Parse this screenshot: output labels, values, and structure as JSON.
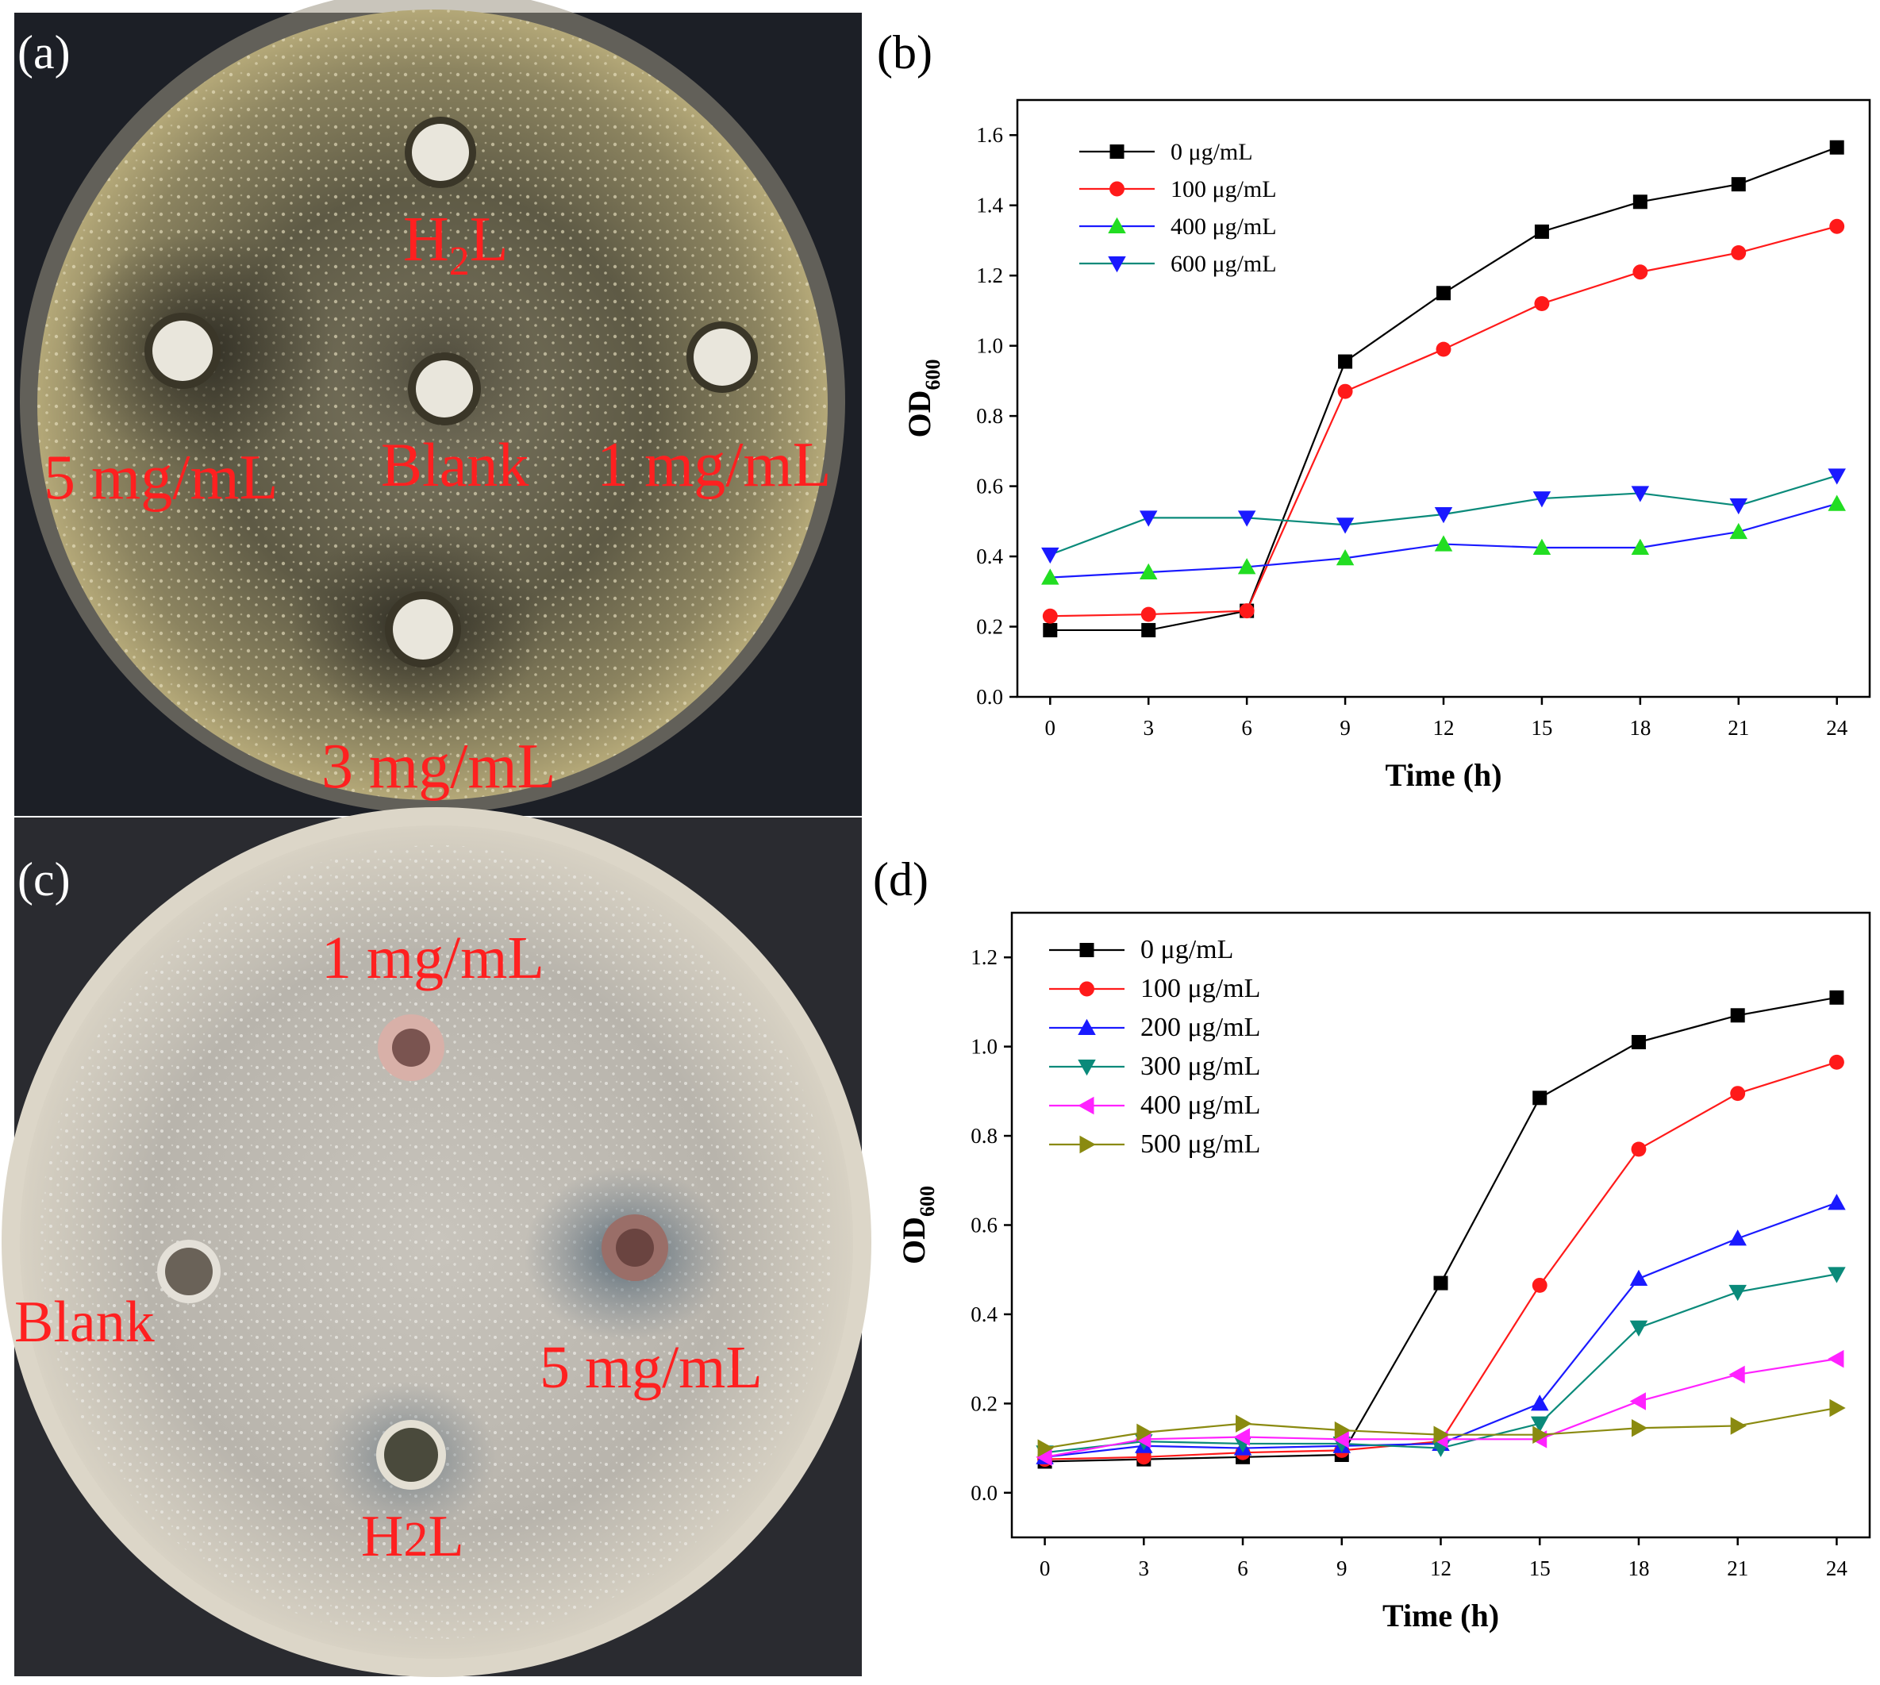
{
  "panels": {
    "a": {
      "letter": "(a)",
      "labels": {
        "top": "H",
        "top_sub": "2",
        "top_tail": "L",
        "left": "5 mg/mL",
        "center": "Blank",
        "right": "1 mg/mL",
        "bottom": "3 mg/mL"
      }
    },
    "c": {
      "letter": "(c)",
      "labels": {
        "top": "1 mg/mL",
        "left": "Blank",
        "right": "5 mg/mL",
        "bottom": "H",
        "bottom_sub": "2",
        "bottom_tail": "L"
      }
    }
  },
  "colors": {
    "black": "#000000",
    "red": "#ff1a1a",
    "blue": "#1a1aff",
    "green": "#22dd22",
    "teal": "#0a8a7a",
    "magenta": "#ff22ff",
    "olive": "#8a8a10",
    "label_red": "#ff2020"
  },
  "chart_data": [
    {
      "panel": "(b)",
      "type": "line",
      "xlabel": "Time (h)",
      "ylabel": "OD",
      "ylabel_sub": "600",
      "x": [
        0,
        3,
        6,
        9,
        12,
        15,
        18,
        21,
        24
      ],
      "xlim": [
        -1,
        25
      ],
      "ylim": [
        0,
        1.7
      ],
      "xticks": [
        0,
        3,
        6,
        9,
        12,
        15,
        18,
        21,
        24
      ],
      "yticks": [
        "0.0",
        "0.2",
        "0.4",
        "0.6",
        "0.8",
        "1.0",
        "1.2",
        "1.4",
        "1.6"
      ],
      "legend_position": "top-left",
      "series": [
        {
          "name": "0 μg/mL",
          "marker": "square",
          "color": "#000000",
          "values": [
            0.19,
            0.19,
            0.245,
            0.955,
            1.15,
            1.325,
            1.41,
            1.46,
            1.565
          ]
        },
        {
          "name": "100 μg/mL",
          "marker": "circle",
          "color": "#ff1a1a",
          "values": [
            0.23,
            0.235,
            0.245,
            0.87,
            0.99,
            1.12,
            1.21,
            1.265,
            1.34
          ]
        },
        {
          "name": "400 μg/mL",
          "marker": "triangle-up",
          "color": "#1a1aff",
          "marker_color": "#22dd22",
          "values": [
            0.34,
            0.355,
            0.37,
            0.395,
            0.435,
            0.425,
            0.425,
            0.47,
            0.55
          ]
        },
        {
          "name": "600 μg/mL",
          "marker": "triangle-down",
          "color": "#0a8a7a",
          "marker_color": "#1a1aff",
          "values": [
            0.405,
            0.51,
            0.51,
            0.49,
            0.52,
            0.565,
            0.58,
            0.545,
            0.63
          ]
        }
      ]
    },
    {
      "panel": "(d)",
      "type": "line",
      "xlabel": "Time (h)",
      "ylabel": "OD",
      "ylabel_sub": "600",
      "x": [
        0,
        3,
        6,
        9,
        12,
        15,
        18,
        21,
        24
      ],
      "xlim": [
        -1,
        25
      ],
      "ylim": [
        -0.1,
        1.3
      ],
      "xticks": [
        0,
        3,
        6,
        9,
        12,
        15,
        18,
        21,
        24
      ],
      "yticks": [
        "0.0",
        "0.2",
        "0.4",
        "0.6",
        "0.8",
        "1.0",
        "1.2"
      ],
      "legend_position": "top-left",
      "series": [
        {
          "name": "0 μg/mL",
          "marker": "square",
          "color": "#000000",
          "values": [
            0.07,
            0.075,
            0.08,
            0.085,
            0.47,
            0.885,
            1.01,
            1.07,
            1.11
          ]
        },
        {
          "name": "100 μg/mL",
          "marker": "circle",
          "color": "#ff1a1a",
          "values": [
            0.075,
            0.08,
            0.09,
            0.095,
            0.115,
            0.465,
            0.77,
            0.895,
            0.965
          ]
        },
        {
          "name": "200 μg/mL",
          "marker": "triangle-up",
          "color": "#1a1aff",
          "values": [
            0.08,
            0.105,
            0.1,
            0.105,
            0.11,
            0.2,
            0.48,
            0.57,
            0.65
          ]
        },
        {
          "name": "300 μg/mL",
          "marker": "triangle-down",
          "color": "#0a8a7a",
          "values": [
            0.09,
            0.115,
            0.11,
            0.11,
            0.1,
            0.155,
            0.37,
            0.45,
            0.49
          ]
        },
        {
          "name": "400 μg/mL",
          "marker": "triangle-left",
          "color": "#ff22ff",
          "values": [
            0.08,
            0.12,
            0.125,
            0.12,
            0.12,
            0.12,
            0.205,
            0.265,
            0.3
          ]
        },
        {
          "name": "500 μg/mL",
          "marker": "triangle-right",
          "color": "#8a8a10",
          "values": [
            0.1,
            0.135,
            0.155,
            0.14,
            0.13,
            0.13,
            0.145,
            0.15,
            0.19
          ]
        }
      ]
    }
  ]
}
